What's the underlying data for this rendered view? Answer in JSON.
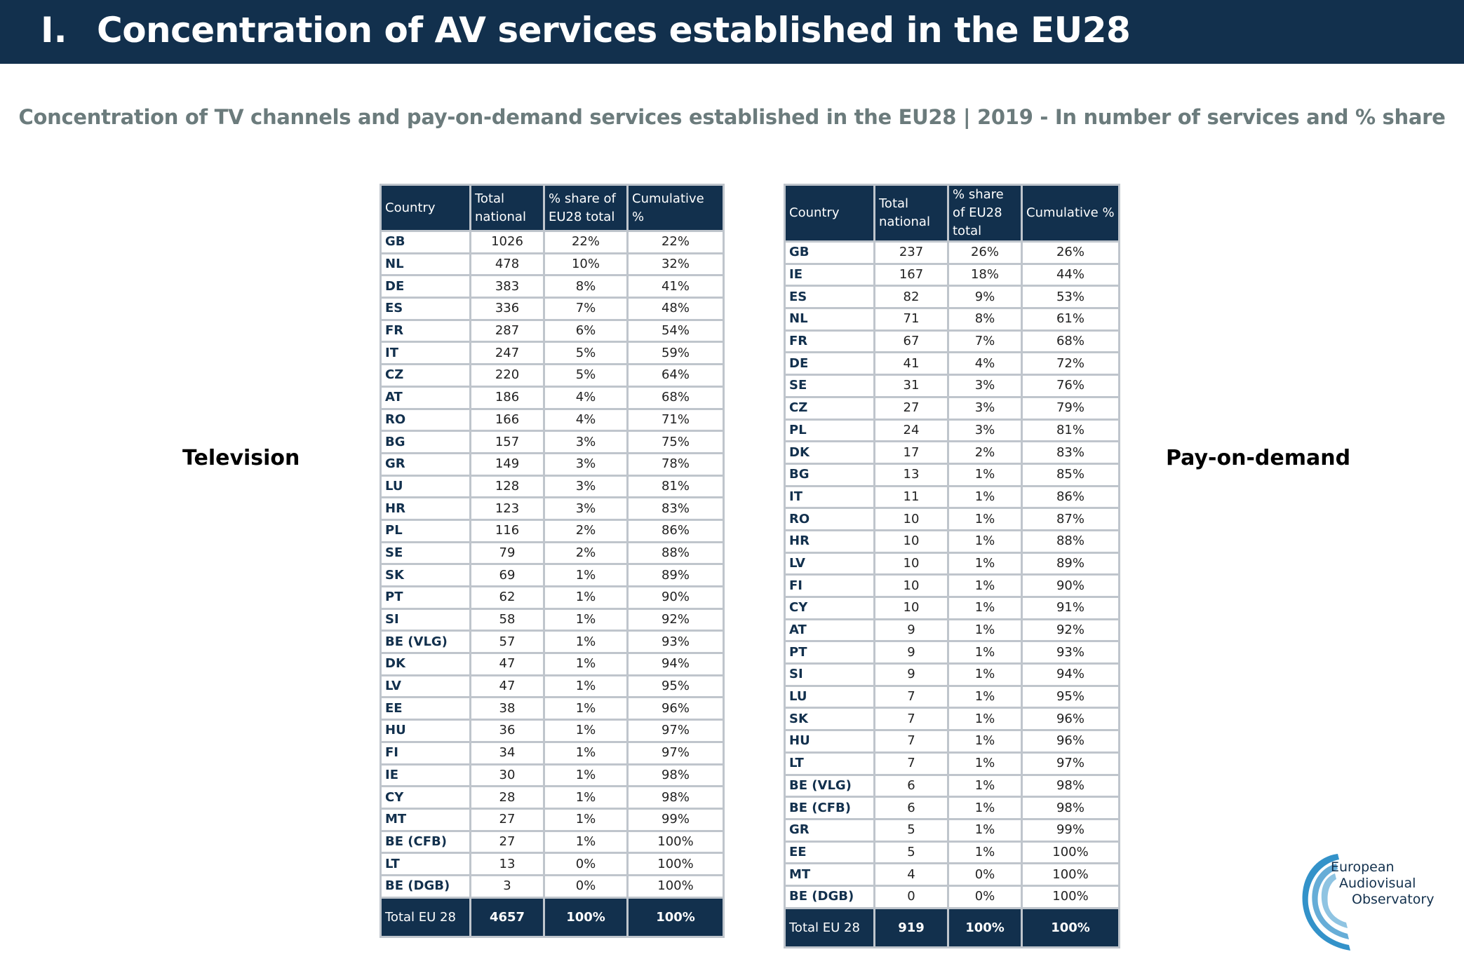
{
  "header": {
    "number": "I.",
    "title": "Concentration of AV services established in the EU28"
  },
  "subtitle": "Concentration of TV channels and pay-on-demand services established in the EU28 | 2019 - In number of services and % share",
  "columns": [
    "Country",
    "Total national",
    "% share of EU28 total",
    "Cumulative %"
  ],
  "television": {
    "label": "Television",
    "rows": [
      [
        "GB",
        "1026",
        "22%",
        "22%"
      ],
      [
        "NL",
        "478",
        "10%",
        "32%"
      ],
      [
        "DE",
        "383",
        "8%",
        "41%"
      ],
      [
        "ES",
        "336",
        "7%",
        "48%"
      ],
      [
        "FR",
        "287",
        "6%",
        "54%"
      ],
      [
        "IT",
        "247",
        "5%",
        "59%"
      ],
      [
        "CZ",
        "220",
        "5%",
        "64%"
      ],
      [
        "AT",
        "186",
        "4%",
        "68%"
      ],
      [
        "RO",
        "166",
        "4%",
        "71%"
      ],
      [
        "BG",
        "157",
        "3%",
        "75%"
      ],
      [
        "GR",
        "149",
        "3%",
        "78%"
      ],
      [
        "LU",
        "128",
        "3%",
        "81%"
      ],
      [
        "HR",
        "123",
        "3%",
        "83%"
      ],
      [
        "PL",
        "116",
        "2%",
        "86%"
      ],
      [
        "SE",
        "79",
        "2%",
        "88%"
      ],
      [
        "SK",
        "69",
        "1%",
        "89%"
      ],
      [
        "PT",
        "62",
        "1%",
        "90%"
      ],
      [
        "SI",
        "58",
        "1%",
        "92%"
      ],
      [
        "BE (VLG)",
        "57",
        "1%",
        "93%"
      ],
      [
        "DK",
        "47",
        "1%",
        "94%"
      ],
      [
        "LV",
        "47",
        "1%",
        "95%"
      ],
      [
        "EE",
        "38",
        "1%",
        "96%"
      ],
      [
        "HU",
        "36",
        "1%",
        "97%"
      ],
      [
        "FI",
        "34",
        "1%",
        "97%"
      ],
      [
        "IE",
        "30",
        "1%",
        "98%"
      ],
      [
        "CY",
        "28",
        "1%",
        "98%"
      ],
      [
        "MT",
        "27",
        "1%",
        "99%"
      ],
      [
        "BE (CFB)",
        "27",
        "1%",
        "100%"
      ],
      [
        "LT",
        "13",
        "0%",
        "100%"
      ],
      [
        "BE (DGB)",
        "3",
        "0%",
        "100%"
      ]
    ],
    "total": [
      "Total EU 28",
      "4657",
      "100%",
      "100%"
    ]
  },
  "pay_on_demand": {
    "label": "Pay-on-demand",
    "rows": [
      [
        "GB",
        "237",
        "26%",
        "26%"
      ],
      [
        "IE",
        "167",
        "18%",
        "44%"
      ],
      [
        "ES",
        "82",
        "9%",
        "53%"
      ],
      [
        "NL",
        "71",
        "8%",
        "61%"
      ],
      [
        "FR",
        "67",
        "7%",
        "68%"
      ],
      [
        "DE",
        "41",
        "4%",
        "72%"
      ],
      [
        "SE",
        "31",
        "3%",
        "76%"
      ],
      [
        "CZ",
        "27",
        "3%",
        "79%"
      ],
      [
        "PL",
        "24",
        "3%",
        "81%"
      ],
      [
        "DK",
        "17",
        "2%",
        "83%"
      ],
      [
        "BG",
        "13",
        "1%",
        "85%"
      ],
      [
        "IT",
        "11",
        "1%",
        "86%"
      ],
      [
        "RO",
        "10",
        "1%",
        "87%"
      ],
      [
        "HR",
        "10",
        "1%",
        "88%"
      ],
      [
        "LV",
        "10",
        "1%",
        "89%"
      ],
      [
        "FI",
        "10",
        "1%",
        "90%"
      ],
      [
        "CY",
        "10",
        "1%",
        "91%"
      ],
      [
        "AT",
        "9",
        "1%",
        "92%"
      ],
      [
        "PT",
        "9",
        "1%",
        "93%"
      ],
      [
        "SI",
        "9",
        "1%",
        "94%"
      ],
      [
        "LU",
        "7",
        "1%",
        "95%"
      ],
      [
        "SK",
        "7",
        "1%",
        "96%"
      ],
      [
        "HU",
        "7",
        "1%",
        "96%"
      ],
      [
        "LT",
        "7",
        "1%",
        "97%"
      ],
      [
        "BE (VLG)",
        "6",
        "1%",
        "98%"
      ],
      [
        "BE (CFB)",
        "6",
        "1%",
        "98%"
      ],
      [
        "GR",
        "5",
        "1%",
        "99%"
      ],
      [
        "EE",
        "5",
        "1%",
        "100%"
      ],
      [
        "MT",
        "4",
        "0%",
        "100%"
      ],
      [
        "BE (DGB)",
        "0",
        "0%",
        "100%"
      ]
    ],
    "total": [
      "Total EU 28",
      "919",
      "100%",
      "100%"
    ]
  },
  "logo": {
    "line1": "European",
    "line2": "Audiovisual",
    "line3": "Observatory"
  },
  "colors": {
    "navy": "#12304d",
    "subtitle_grey": "#6b7b7c",
    "border": "#bfc5cc"
  }
}
